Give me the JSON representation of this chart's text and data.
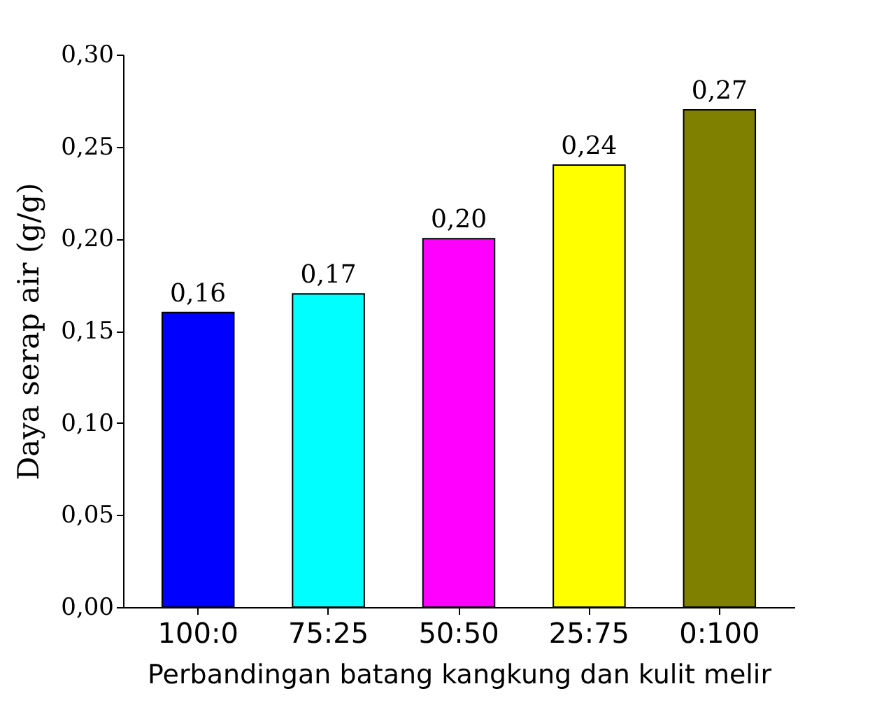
{
  "chart_data": {
    "type": "bar",
    "xlabel": "Perbandingan batang kangkung dan kulit melir",
    "ylabel": "Daya serap air (g/g)",
    "categories": [
      "100:0",
      "75:25",
      "50:50",
      "25:75",
      "0:100"
    ],
    "values": [
      0.16,
      0.17,
      0.2,
      0.24,
      0.27
    ],
    "colors": [
      "#0000ff",
      "#00ffff",
      "#ff00ff",
      "#ffff00",
      "#808000"
    ],
    "ylim": [
      0,
      0.3
    ],
    "yticks": [
      {
        "value": 0,
        "label": "0,00"
      },
      {
        "value": 0.05,
        "label": "0,05"
      },
      {
        "value": 0.1,
        "label": "0,10"
      },
      {
        "value": 0.15,
        "label": "0,15"
      },
      {
        "value": 0.2,
        "label": "0,20"
      },
      {
        "value": 0.25,
        "label": "0,25"
      },
      {
        "value": 0.3,
        "label": "0,30"
      }
    ],
    "value_labels": [
      "0,16",
      "0,17",
      "0,20",
      "0,24",
      "0,27"
    ]
  }
}
